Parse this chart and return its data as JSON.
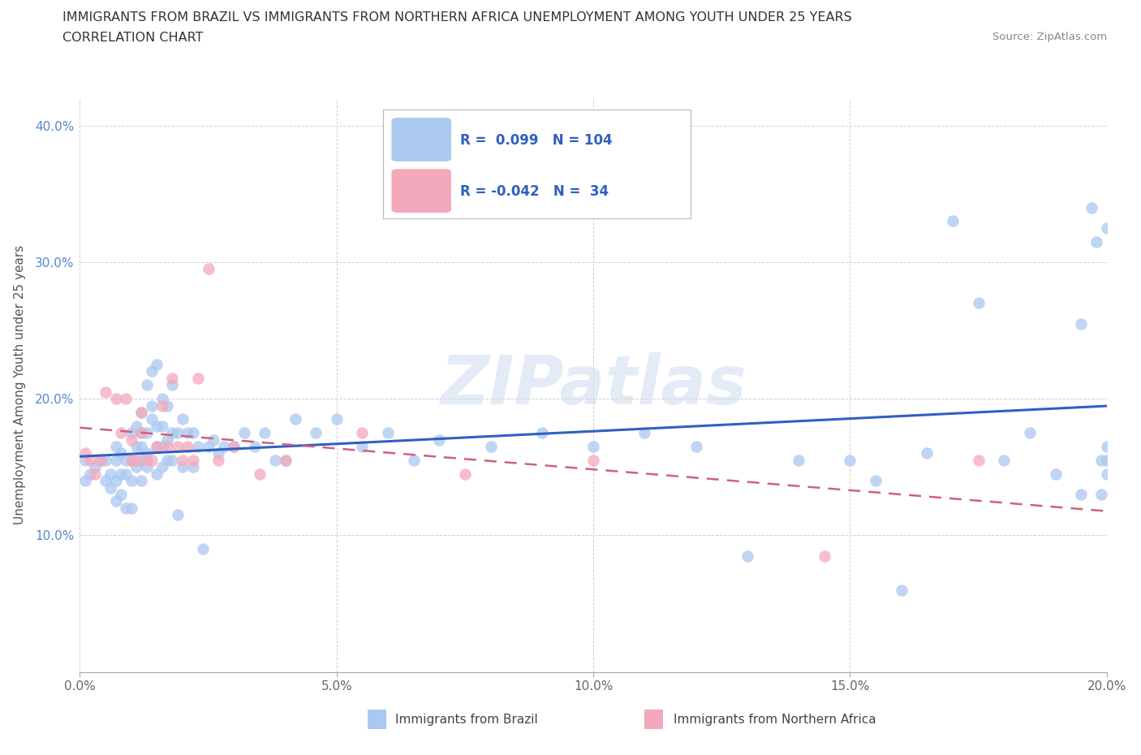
{
  "title_line1": "IMMIGRANTS FROM BRAZIL VS IMMIGRANTS FROM NORTHERN AFRICA UNEMPLOYMENT AMONG YOUTH UNDER 25 YEARS",
  "title_line2": "CORRELATION CHART",
  "source_text": "Source: ZipAtlas.com",
  "ylabel": "Unemployment Among Youth under 25 years",
  "xlim": [
    0.0,
    0.2
  ],
  "ylim": [
    0.0,
    0.42
  ],
  "xticks": [
    0.0,
    0.05,
    0.1,
    0.15,
    0.2
  ],
  "xtick_labels": [
    "0.0%",
    "5.0%",
    "10.0%",
    "15.0%",
    "20.0%"
  ],
  "yticks": [
    0.0,
    0.1,
    0.2,
    0.3,
    0.4
  ],
  "ytick_labels": [
    "",
    "10.0%",
    "20.0%",
    "30.0%",
    "40.0%"
  ],
  "brazil_R": 0.099,
  "brazil_N": 104,
  "nafrica_R": -0.042,
  "nafrica_N": 34,
  "brazil_color": "#aac8f0",
  "nafrica_color": "#f4a8bc",
  "brazil_line_color": "#3060c0",
  "nafrica_line_color": "#d06080",
  "watermark": "ZIPatlas",
  "brazil_x": [
    0.001,
    0.001,
    0.002,
    0.003,
    0.004,
    0.005,
    0.005,
    0.006,
    0.006,
    0.007,
    0.007,
    0.007,
    0.007,
    0.008,
    0.008,
    0.008,
    0.009,
    0.009,
    0.009,
    0.01,
    0.01,
    0.01,
    0.01,
    0.011,
    0.011,
    0.011,
    0.012,
    0.012,
    0.012,
    0.012,
    0.012,
    0.013,
    0.013,
    0.013,
    0.013,
    0.014,
    0.014,
    0.014,
    0.015,
    0.015,
    0.015,
    0.015,
    0.016,
    0.016,
    0.016,
    0.016,
    0.017,
    0.017,
    0.017,
    0.018,
    0.018,
    0.018,
    0.019,
    0.019,
    0.02,
    0.02,
    0.021,
    0.022,
    0.022,
    0.023,
    0.024,
    0.025,
    0.026,
    0.027,
    0.028,
    0.03,
    0.032,
    0.034,
    0.036,
    0.038,
    0.04,
    0.042,
    0.046,
    0.05,
    0.055,
    0.06,
    0.065,
    0.07,
    0.08,
    0.09,
    0.1,
    0.11,
    0.12,
    0.13,
    0.14,
    0.15,
    0.155,
    0.16,
    0.165,
    0.17,
    0.175,
    0.18,
    0.185,
    0.19,
    0.195,
    0.195,
    0.197,
    0.198,
    0.199,
    0.199,
    0.2,
    0.2,
    0.2,
    0.2
  ],
  "brazil_y": [
    0.155,
    0.14,
    0.145,
    0.15,
    0.155,
    0.14,
    0.155,
    0.135,
    0.145,
    0.125,
    0.14,
    0.155,
    0.165,
    0.13,
    0.145,
    0.16,
    0.12,
    0.145,
    0.155,
    0.12,
    0.14,
    0.155,
    0.175,
    0.15,
    0.165,
    0.18,
    0.14,
    0.155,
    0.165,
    0.175,
    0.19,
    0.15,
    0.16,
    0.175,
    0.21,
    0.185,
    0.195,
    0.22,
    0.145,
    0.165,
    0.18,
    0.225,
    0.15,
    0.165,
    0.18,
    0.2,
    0.155,
    0.17,
    0.195,
    0.155,
    0.175,
    0.21,
    0.115,
    0.175,
    0.15,
    0.185,
    0.175,
    0.15,
    0.175,
    0.165,
    0.09,
    0.165,
    0.17,
    0.16,
    0.165,
    0.165,
    0.175,
    0.165,
    0.175,
    0.155,
    0.155,
    0.185,
    0.175,
    0.185,
    0.165,
    0.175,
    0.155,
    0.17,
    0.165,
    0.175,
    0.165,
    0.175,
    0.165,
    0.085,
    0.155,
    0.155,
    0.14,
    0.06,
    0.16,
    0.33,
    0.27,
    0.155,
    0.175,
    0.145,
    0.13,
    0.255,
    0.34,
    0.315,
    0.13,
    0.155,
    0.155,
    0.165,
    0.325,
    0.145
  ],
  "nafrica_x": [
    0.001,
    0.002,
    0.003,
    0.004,
    0.005,
    0.007,
    0.008,
    0.009,
    0.01,
    0.01,
    0.011,
    0.012,
    0.012,
    0.013,
    0.014,
    0.015,
    0.016,
    0.017,
    0.018,
    0.019,
    0.02,
    0.021,
    0.022,
    0.023,
    0.025,
    0.027,
    0.03,
    0.035,
    0.04,
    0.055,
    0.075,
    0.1,
    0.145,
    0.175
  ],
  "nafrica_y": [
    0.16,
    0.155,
    0.145,
    0.155,
    0.205,
    0.2,
    0.175,
    0.2,
    0.155,
    0.17,
    0.155,
    0.175,
    0.19,
    0.155,
    0.155,
    0.165,
    0.195,
    0.165,
    0.215,
    0.165,
    0.155,
    0.165,
    0.155,
    0.215,
    0.295,
    0.155,
    0.165,
    0.145,
    0.155,
    0.175,
    0.145,
    0.155,
    0.085,
    0.155
  ]
}
